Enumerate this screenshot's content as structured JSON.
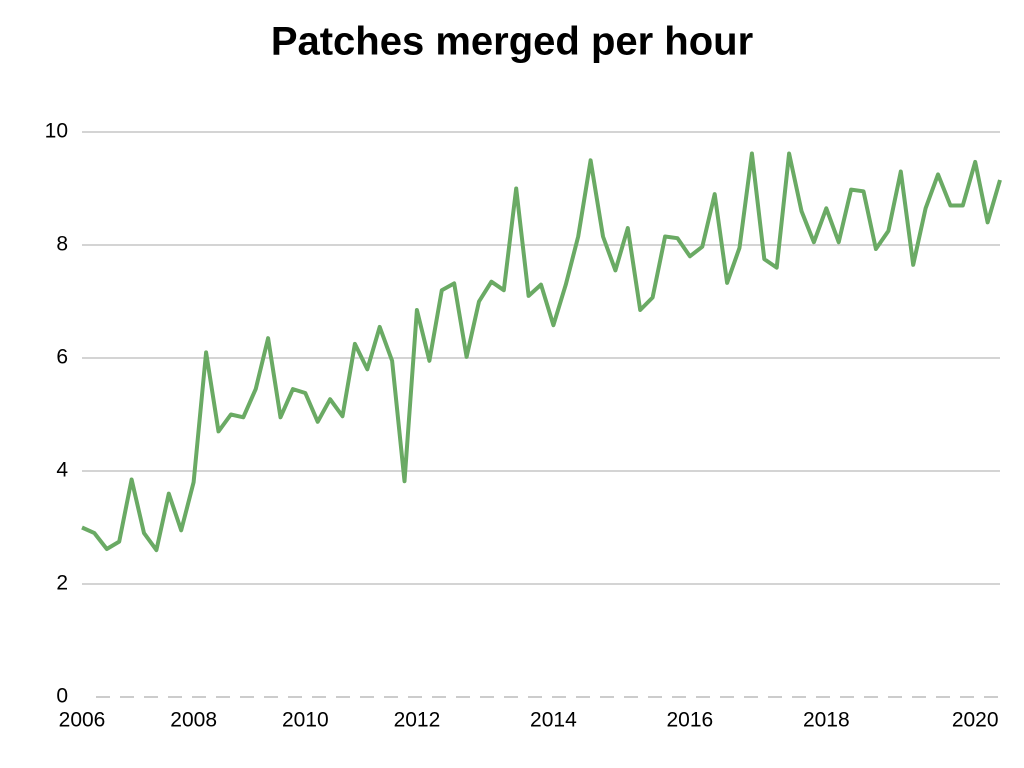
{
  "chart_data": {
    "type": "line",
    "title": "Patches merged per hour",
    "categories": [
      "2006",
      null,
      null,
      null,
      null,
      null,
      null,
      null,
      null,
      "2008",
      null,
      null,
      null,
      null,
      null,
      null,
      null,
      null,
      "2010",
      null,
      null,
      null,
      null,
      null,
      null,
      null,
      null,
      "2012",
      null,
      null,
      null,
      null,
      null,
      null,
      null,
      null,
      null,
      null,
      "2014",
      null,
      null,
      null,
      null,
      null,
      null,
      null,
      null,
      null,
      null,
      "2016",
      null,
      null,
      null,
      null,
      null,
      null,
      null,
      null,
      null,
      null,
      "2018",
      null,
      null,
      null,
      null,
      null,
      null,
      null,
      null,
      null,
      null,
      null,
      "2020",
      null,
      null
    ],
    "series": [
      {
        "color": "#6aaa64",
        "values": [
          3.0,
          2.9,
          2.62,
          2.75,
          3.85,
          2.9,
          2.6,
          3.6,
          2.95,
          3.8,
          6.1,
          4.7,
          5.0,
          4.95,
          5.45,
          6.35,
          4.95,
          5.45,
          5.38,
          4.87,
          5.27,
          4.97,
          6.25,
          5.8,
          6.55,
          5.95,
          3.82,
          6.85,
          5.95,
          7.2,
          7.32,
          6.02,
          7.0,
          7.35,
          7.2,
          9.0,
          7.1,
          7.3,
          6.58,
          7.3,
          8.15,
          9.5,
          8.15,
          7.55,
          8.3,
          6.85,
          7.07,
          8.15,
          8.12,
          7.8,
          7.97,
          8.9,
          7.33,
          7.95,
          9.62,
          7.75,
          7.6,
          9.62,
          8.6,
          8.05,
          8.65,
          8.05,
          8.98,
          8.95,
          7.93,
          8.25,
          9.3,
          7.65,
          8.65,
          9.25,
          8.7,
          8.7,
          9.47,
          8.4,
          9.15
        ]
      }
    ],
    "ylim": [
      0,
      10
    ],
    "yticks": [
      0,
      2,
      4,
      6,
      8,
      10
    ],
    "grid": true
  }
}
